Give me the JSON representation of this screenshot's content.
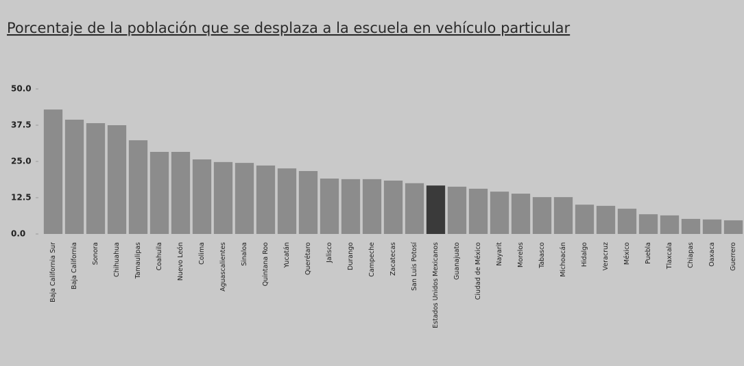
{
  "chart_data": {
    "type": "bar",
    "title": "Porcentaje de la población que se desplaza a la escuela en vehículo particular",
    "categories": [
      "Baja California Sur",
      "Baja California",
      "Sonora",
      "Chihuahua",
      "Tamaulipas",
      "Coahuila",
      "Nuevo León",
      "Colima",
      "Aguascalientes",
      "Sinaloa",
      "Quintana Roo",
      "Yucatán",
      "Querétaro",
      "Jalisco",
      "Durango",
      "Campeche",
      "Zacatecas",
      "San Luis Potosí",
      "Estados Unidos Mexicanos",
      "Guanajuato",
      "Ciudad de México",
      "Nayarit",
      "Morelos",
      "Tabasco",
      "Michoacán",
      "Hidalgo",
      "Veracruz",
      "México",
      "Puebla",
      "Tlaxcala",
      "Chiapas",
      "Oaxaca",
      "Guerrero"
    ],
    "values": [
      42.9,
      39.4,
      38.2,
      37.5,
      32.3,
      28.3,
      28.3,
      25.7,
      24.8,
      24.5,
      23.6,
      22.6,
      21.7,
      19.1,
      18.9,
      18.9,
      18.4,
      17.5,
      16.7,
      16.3,
      15.6,
      14.6,
      13.9,
      12.7,
      12.7,
      10.1,
      9.7,
      8.7,
      6.8,
      6.4,
      5.2,
      5.0,
      4.7
    ],
    "colors": [
      "#8c8c8c",
      "#8c8c8c",
      "#8c8c8c",
      "#8c8c8c",
      "#8c8c8c",
      "#8c8c8c",
      "#8c8c8c",
      "#8c8c8c",
      "#8c8c8c",
      "#8c8c8c",
      "#8c8c8c",
      "#8c8c8c",
      "#8c8c8c",
      "#8c8c8c",
      "#8c8c8c",
      "#8c8c8c",
      "#8c8c8c",
      "#8c8c8c",
      "#3a3a3a",
      "#8c8c8c",
      "#8c8c8c",
      "#8c8c8c",
      "#8c8c8c",
      "#8c8c8c",
      "#8c8c8c",
      "#8c8c8c",
      "#8c8c8c",
      "#8c8c8c",
      "#8c8c8c",
      "#8c8c8c",
      "#8c8c8c",
      "#8c8c8c",
      "#8c8c8c"
    ],
    "ylim": [
      0,
      50
    ],
    "yticks": [
      {
        "value": 0,
        "label": "0.0"
      },
      {
        "value": 12.5,
        "label": "12.5"
      },
      {
        "value": 25,
        "label": "25.0"
      },
      {
        "value": 37.5,
        "label": "37.5"
      },
      {
        "value": 50,
        "label": "50.0"
      }
    ]
  }
}
